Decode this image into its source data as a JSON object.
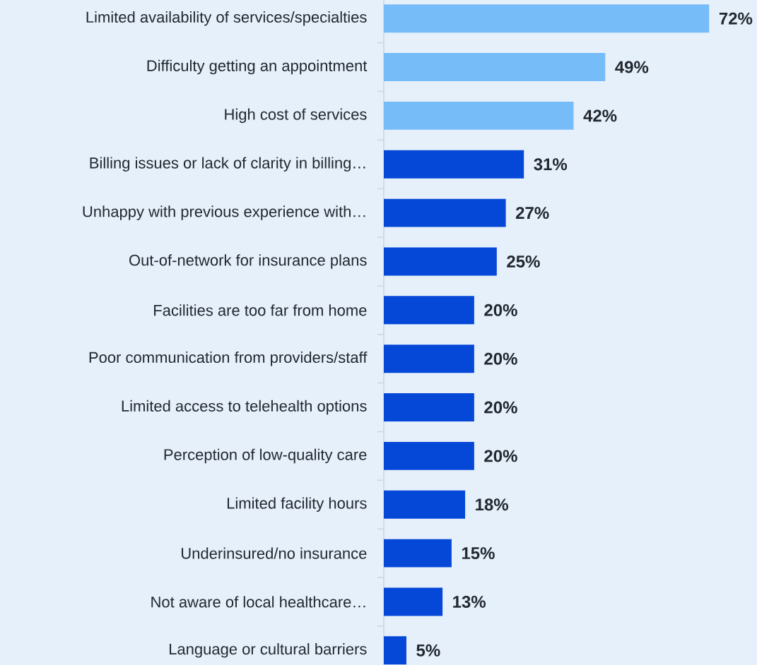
{
  "chart_data": {
    "type": "bar",
    "orientation": "horizontal",
    "categories": [
      "Limited availability of services/specialties",
      "Difficulty getting an appointment",
      "High cost of services",
      "Billing issues or lack of clarity in billing…",
      "Unhappy with previous experience with…",
      "Out-of-network for insurance plans",
      "Facilities are too far from home",
      "Poor communication from providers/staff",
      "Limited access to telehealth options",
      "Perception of low-quality care",
      "Limited facility hours",
      "Underinsured/no insurance",
      "Not aware of local healthcare…",
      "Language or cultural barriers"
    ],
    "values": [
      72,
      49,
      42,
      31,
      27,
      25,
      20,
      20,
      20,
      20,
      18,
      15,
      13,
      5
    ],
    "value_labels": [
      "72%",
      "49%",
      "42%",
      "31%",
      "27%",
      "25%",
      "20%",
      "20%",
      "20%",
      "20%",
      "18%",
      "15%",
      "13%",
      "5%"
    ],
    "colors": [
      "#76bcf9",
      "#76bcf9",
      "#76bcf9",
      "#0548d8",
      "#0548d8",
      "#0548d8",
      "#0548d8",
      "#0548d8",
      "#0548d8",
      "#0548d8",
      "#0548d8",
      "#0548d8",
      "#0548d8",
      "#0548d8"
    ]
  }
}
